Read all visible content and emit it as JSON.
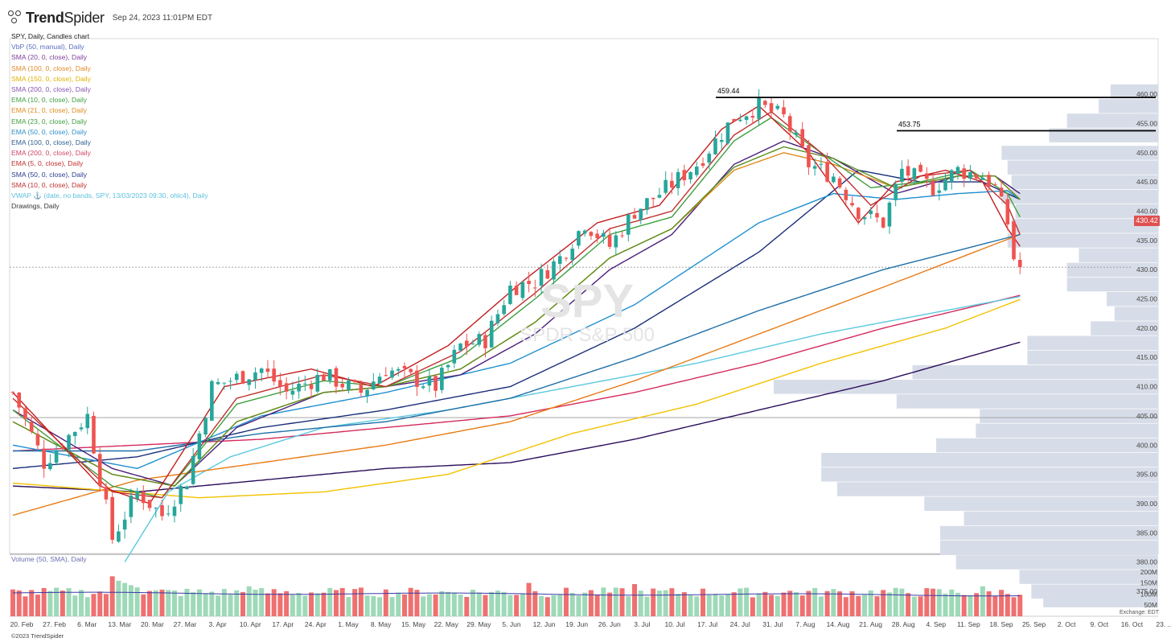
{
  "header": {
    "brand": "TrendSpider",
    "brand_strong": "Trend",
    "brand_rest": "Spider",
    "datetime": "Sep 24, 2023 11:01PM EDT"
  },
  "legend": {
    "title": "SPY, Daily, Candles chart",
    "items": [
      {
        "text": "VbP (50, manual), Daily",
        "color": "#5b6fbf"
      },
      {
        "text": "SMA (20, 0, close), Daily",
        "color": "#7e3f9f"
      },
      {
        "text": "SMA (100, 0, close), Daily",
        "color": "#e28a2b"
      },
      {
        "text": "SMA (150, 0, close), Daily",
        "color": "#e0b100"
      },
      {
        "text": "SMA (200, 0, close), Daily",
        "color": "#8a55b0"
      },
      {
        "text": "EMA (10, 0, close), Daily",
        "color": "#3f9f3f"
      },
      {
        "text": "EMA (21, 0, close), Daily",
        "color": "#e08a1c"
      },
      {
        "text": "EMA (23, 0, close), Daily",
        "color": "#3f9f3f"
      },
      {
        "text": "EMA (50, 0, close), Daily",
        "color": "#2f8fc8"
      },
      {
        "text": "EMA (100, 0, close), Daily",
        "color": "#2f5f8f"
      },
      {
        "text": "EMA (200, 0, close), Daily",
        "color": "#d0456a"
      },
      {
        "text": "EMA (5, 0, close), Daily",
        "color": "#c0302f"
      },
      {
        "text": "SMA (50, 0, close), Daily",
        "color": "#2a3f8f"
      },
      {
        "text": "SMA (10, 0, close), Daily",
        "color": "#c0302f"
      },
      {
        "text": "VWAP ⚓ (date, no bands, SPY, 13/03/2023 09:30, ohlc4), Daily",
        "color": "#5bc0de"
      },
      {
        "text": "Drawings, Daily",
        "color": "#333333"
      }
    ],
    "volume_label": "Volume (50, SMA), Daily"
  },
  "watermark": {
    "symbol": "SPY",
    "name": "SPDR S&P 500"
  },
  "footer": {
    "copyright": "©2023 TrendSpider",
    "exchange": "Exchange: EDT"
  },
  "last_price": "430.42",
  "colors": {
    "up": "#26a69a",
    "down": "#ef5350",
    "vol_up": "#9ed9b8",
    "vol_down": "#ef7070",
    "vbp": "#d7dde8"
  },
  "chart_data": {
    "type": "candlestick",
    "title": "SPY, Daily, Candles chart",
    "ylim": [
      373,
      463
    ],
    "y_ticks": [
      375,
      380,
      385,
      390,
      395,
      400,
      405,
      410,
      415,
      420,
      425,
      430,
      435,
      440,
      445,
      450,
      455,
      460
    ],
    "volume_ticks": [
      "50M",
      "100M",
      "150M",
      "200M"
    ],
    "x_tick_labels": [
      "20. Feb",
      "27. Feb",
      "6. Mar",
      "13. Mar",
      "20. Mar",
      "27. Mar",
      "3. Apr",
      "10. Apr",
      "17. Apr",
      "24. Apr",
      "1. May",
      "8. May",
      "15. May",
      "22. May",
      "29. May",
      "5. Jun",
      "12. Jun",
      "19. Jun",
      "26. Jun",
      "3. Jul",
      "10. Jul",
      "17. Jul",
      "24. Jul",
      "31. Jul",
      "7. Aug",
      "14. Aug",
      "21. Aug",
      "28. Aug",
      "4. Sep",
      "11. Sep",
      "18. Sep",
      "25. Sep",
      "2. Oct",
      "9. Oct",
      "16. Oct",
      "23. ..."
    ],
    "horizontal_lines": [
      {
        "label": "459.44",
        "value": 459.44
      },
      {
        "label": "453.75",
        "value": 453.75
      }
    ],
    "reference_line": 404.7,
    "last_price": 430.42,
    "anchors": [
      [
        0,
        409
      ],
      [
        5,
        397
      ],
      [
        12,
        405
      ],
      [
        16,
        384
      ],
      [
        20,
        392
      ],
      [
        24,
        388
      ],
      [
        28,
        394
      ],
      [
        32,
        410
      ],
      [
        40,
        413
      ],
      [
        44,
        409
      ],
      [
        50,
        412
      ],
      [
        56,
        409
      ],
      [
        60,
        413
      ],
      [
        68,
        410
      ],
      [
        72,
        417
      ],
      [
        76,
        418
      ],
      [
        80,
        427
      ],
      [
        84,
        428
      ],
      [
        88,
        432
      ],
      [
        92,
        438
      ],
      [
        96,
        434
      ],
      [
        100,
        440
      ],
      [
        104,
        443
      ],
      [
        110,
        448
      ],
      [
        116,
        456
      ],
      [
        120,
        458
      ],
      [
        124,
        456
      ],
      [
        128,
        448
      ],
      [
        132,
        446
      ],
      [
        136,
        440
      ],
      [
        140,
        438
      ],
      [
        143,
        447
      ],
      [
        148,
        444
      ],
      [
        152,
        447
      ],
      [
        156,
        446
      ],
      [
        158,
        444
      ],
      [
        160,
        438
      ],
      [
        161,
        432
      ],
      [
        162,
        430.4
      ]
    ],
    "vbp_profile": [
      [
        460.5,
        1200
      ],
      [
        458,
        1500
      ],
      [
        455.5,
        2300
      ],
      [
        453,
        2750
      ],
      [
        450,
        3950
      ],
      [
        447.5,
        3800
      ],
      [
        445,
        3700
      ],
      [
        442.5,
        3950
      ],
      [
        440,
        3600
      ],
      [
        437.5,
        3700
      ],
      [
        435,
        3800
      ],
      [
        432.5,
        2000
      ],
      [
        430,
        2300
      ],
      [
        427.5,
        2300
      ],
      [
        425,
        1300
      ],
      [
        422.5,
        1100
      ],
      [
        420,
        1700
      ],
      [
        417.5,
        3300
      ],
      [
        415,
        3300
      ],
      [
        412.5,
        6200
      ],
      [
        410,
        9700
      ],
      [
        407.5,
        6600
      ],
      [
        405,
        4500
      ],
      [
        402.5,
        4600
      ],
      [
        400,
        5600
      ],
      [
        397.5,
        8500
      ],
      [
        395,
        8500
      ],
      [
        392.5,
        8100
      ],
      [
        390,
        5900
      ],
      [
        387.5,
        4900
      ],
      [
        385,
        5500
      ],
      [
        382.5,
        5500
      ],
      [
        380,
        5100
      ],
      [
        377.5,
        3500
      ],
      [
        375,
        3200
      ],
      [
        373.5,
        2900
      ]
    ],
    "vbp_scale_max": 9700,
    "overlays": [
      {
        "name": "SMA (200, 0, close), Daily",
        "color": "#2b0d5a",
        "points": [
          [
            0,
            393
          ],
          [
            20,
            392
          ],
          [
            40,
            394
          ],
          [
            60,
            396
          ],
          [
            80,
            397
          ],
          [
            100,
            401
          ],
          [
            120,
            406
          ],
          [
            140,
            411
          ],
          [
            162,
            417.6
          ]
        ]
      },
      {
        "name": "SMA (150, 0, close), Daily",
        "color": "#f2c200",
        "points": [
          [
            0,
            393.5
          ],
          [
            30,
            391
          ],
          [
            50,
            392
          ],
          [
            70,
            395
          ],
          [
            90,
            402
          ],
          [
            110,
            407
          ],
          [
            130,
            414
          ],
          [
            150,
            420
          ],
          [
            162,
            424.9
          ]
        ]
      },
      {
        "name": "EMA (200, 0, close), Daily",
        "color": "#d42a5c",
        "points": [
          [
            0,
            399
          ],
          [
            20,
            400
          ],
          [
            40,
            401
          ],
          [
            60,
            403
          ],
          [
            80,
            405
          ],
          [
            100,
            409
          ],
          [
            120,
            414
          ],
          [
            140,
            420
          ],
          [
            162,
            425.6
          ]
        ]
      },
      {
        "name": "VWAP (date, no bands, SPY, 13/03/2023 09:30, ohlc4), Daily",
        "color": "#5bc8e0",
        "points": [
          [
            18,
            380
          ],
          [
            25,
            392
          ],
          [
            35,
            398
          ],
          [
            50,
            403
          ],
          [
            70,
            406
          ],
          [
            90,
            410
          ],
          [
            110,
            414
          ],
          [
            130,
            419
          ],
          [
            150,
            423
          ],
          [
            162,
            425.4
          ]
        ]
      },
      {
        "name": "SMA (100, 0, close), Daily",
        "color": "#e87b14",
        "points": [
          [
            0,
            388
          ],
          [
            20,
            394
          ],
          [
            40,
            397
          ],
          [
            60,
            400
          ],
          [
            80,
            404
          ],
          [
            100,
            411
          ],
          [
            120,
            419
          ],
          [
            140,
            427
          ],
          [
            162,
            436
          ]
        ]
      },
      {
        "name": "EMA (100, 0, close), Daily",
        "color": "#1f6fa8",
        "points": [
          [
            0,
            399
          ],
          [
            20,
            399
          ],
          [
            40,
            402
          ],
          [
            60,
            404
          ],
          [
            80,
            408
          ],
          [
            100,
            415
          ],
          [
            120,
            423
          ],
          [
            140,
            430
          ],
          [
            162,
            436
          ]
        ]
      },
      {
        "name": "SMA (50, 0, close), Daily",
        "color": "#1a2f7a",
        "points": [
          [
            0,
            396
          ],
          [
            20,
            398
          ],
          [
            40,
            403
          ],
          [
            60,
            406
          ],
          [
            80,
            410
          ],
          [
            100,
            420
          ],
          [
            120,
            433
          ],
          [
            136,
            447
          ],
          [
            146,
            445
          ],
          [
            156,
            445
          ],
          [
            162,
            442
          ]
        ]
      },
      {
        "name": "EMA (50, 0, close), Daily",
        "color": "#1f90d0",
        "points": [
          [
            0,
            400
          ],
          [
            20,
            396
          ],
          [
            40,
            405
          ],
          [
            60,
            409
          ],
          [
            80,
            414
          ],
          [
            100,
            424
          ],
          [
            120,
            438
          ],
          [
            132,
            443
          ],
          [
            142,
            442
          ],
          [
            152,
            443
          ],
          [
            160,
            443.5
          ],
          [
            162,
            442
          ]
        ]
      },
      {
        "name": "SMA (20, 0, close), Daily",
        "color": "#4a1f7a",
        "points": [
          [
            0,
            406
          ],
          [
            16,
            396
          ],
          [
            26,
            393
          ],
          [
            36,
            403
          ],
          [
            50,
            409
          ],
          [
            60,
            410
          ],
          [
            72,
            412
          ],
          [
            84,
            419
          ],
          [
            96,
            430
          ],
          [
            106,
            436
          ],
          [
            116,
            448
          ],
          [
            124,
            452
          ],
          [
            132,
            449
          ],
          [
            142,
            443
          ],
          [
            152,
            446
          ],
          [
            158,
            446
          ],
          [
            162,
            443
          ]
        ]
      },
      {
        "name": "EMA (21, 0, close), Daily",
        "color": "#e08a1c",
        "points": [
          [
            0,
            404
          ],
          [
            16,
            395
          ],
          [
            26,
            393
          ],
          [
            36,
            404
          ],
          [
            50,
            409
          ],
          [
            60,
            410
          ],
          [
            72,
            413
          ],
          [
            84,
            421
          ],
          [
            96,
            432
          ],
          [
            106,
            437
          ],
          [
            116,
            447
          ],
          [
            124,
            450
          ],
          [
            132,
            448
          ],
          [
            142,
            444
          ],
          [
            152,
            446
          ],
          [
            158,
            446
          ],
          [
            162,
            442
          ]
        ]
      },
      {
        "name": "EMA (23, 0, close), Daily",
        "color": "#5b8f1f",
        "points": [
          [
            0,
            404
          ],
          [
            16,
            395
          ],
          [
            26,
            393
          ],
          [
            36,
            404
          ],
          [
            50,
            409
          ],
          [
            60,
            410
          ],
          [
            72,
            413
          ],
          [
            84,
            421
          ],
          [
            96,
            432
          ],
          [
            106,
            437
          ],
          [
            116,
            447.5
          ],
          [
            124,
            451
          ],
          [
            132,
            449
          ],
          [
            142,
            444
          ],
          [
            152,
            446
          ],
          [
            158,
            446
          ],
          [
            162,
            442
          ]
        ]
      },
      {
        "name": "EMA (10, 0, close), Daily",
        "color": "#3f9f3f",
        "points": [
          [
            0,
            406
          ],
          [
            16,
            393
          ],
          [
            24,
            391
          ],
          [
            36,
            407
          ],
          [
            50,
            411
          ],
          [
            60,
            410
          ],
          [
            72,
            415
          ],
          [
            84,
            425
          ],
          [
            96,
            436
          ],
          [
            106,
            439
          ],
          [
            116,
            452
          ],
          [
            122,
            456
          ],
          [
            130,
            450
          ],
          [
            138,
            444
          ],
          [
            146,
            445
          ],
          [
            154,
            447
          ],
          [
            160,
            443
          ],
          [
            162,
            439
          ]
        ]
      },
      {
        "name": "SMA (10, 0, close), Daily",
        "color": "#c0302f",
        "points": [
          [
            0,
            408
          ],
          [
            16,
            392
          ],
          [
            24,
            391
          ],
          [
            36,
            408
          ],
          [
            50,
            412
          ],
          [
            60,
            410
          ],
          [
            72,
            416
          ],
          [
            84,
            426
          ],
          [
            96,
            437
          ],
          [
            106,
            440
          ],
          [
            116,
            453
          ],
          [
            122,
            457
          ],
          [
            130,
            450
          ],
          [
            138,
            441
          ],
          [
            146,
            446
          ],
          [
            154,
            447
          ],
          [
            160,
            441
          ],
          [
            162,
            436
          ]
        ]
      },
      {
        "name": "EMA (5, 0, close), Daily",
        "color": "#c41e1e",
        "points": [
          [
            0,
            409
          ],
          [
            14,
            393
          ],
          [
            22,
            390
          ],
          [
            34,
            410
          ],
          [
            48,
            413
          ],
          [
            58,
            410
          ],
          [
            70,
            417
          ],
          [
            82,
            428
          ],
          [
            94,
            438
          ],
          [
            104,
            441
          ],
          [
            114,
            454
          ],
          [
            120,
            458
          ],
          [
            128,
            450
          ],
          [
            136,
            438
          ],
          [
            142,
            445
          ],
          [
            150,
            447
          ],
          [
            156,
            445
          ],
          [
            160,
            437
          ],
          [
            162,
            434
          ]
        ]
      }
    ]
  }
}
